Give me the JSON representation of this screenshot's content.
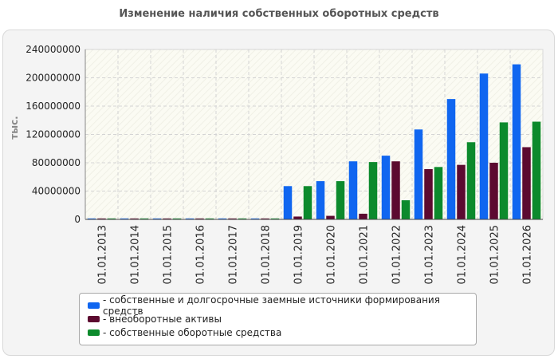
{
  "chart_data": {
    "type": "bar",
    "title": "Изменение наличия собственных оборотных средств",
    "ylabel": "тыс.",
    "xlabel": "",
    "ylim": [
      0,
      240000000
    ],
    "yticks": [
      0,
      40000000,
      80000000,
      120000000,
      160000000,
      200000000,
      240000000
    ],
    "grid": true,
    "legend_position": "bottom",
    "categories": [
      "01.01.2013",
      "01.01.2014",
      "01.01.2015",
      "01.01.2016",
      "01.01.2017",
      "01.01.2018",
      "01.01.2019",
      "01.01.2020",
      "01.01.2021",
      "01.01.2022",
      "01.01.2023",
      "01.01.2024",
      "01.01.2025",
      "01.01.2026"
    ],
    "series": [
      {
        "name": "собственные и долгосрочные заемные источники формирования средств",
        "color": "#1066f0",
        "values": [
          1000000,
          1000000,
          1000000,
          1000000,
          1000000,
          1000000,
          47000000,
          54000000,
          82000000,
          90000000,
          127000000,
          170000000,
          206000000,
          219000000
        ]
      },
      {
        "name": "внеоборотные активы",
        "color": "#5c0a30",
        "values": [
          500000,
          500000,
          500000,
          500000,
          500000,
          500000,
          4000000,
          5000000,
          8000000,
          82000000,
          71000000,
          77000000,
          80000000,
          102000000
        ]
      },
      {
        "name": "собственные оборотные средства",
        "color": "#0c8a2c",
        "values": [
          500000,
          500000,
          500000,
          500000,
          500000,
          500000,
          47000000,
          54000000,
          81000000,
          27000000,
          74000000,
          109000000,
          137000000,
          138000000
        ]
      }
    ]
  }
}
